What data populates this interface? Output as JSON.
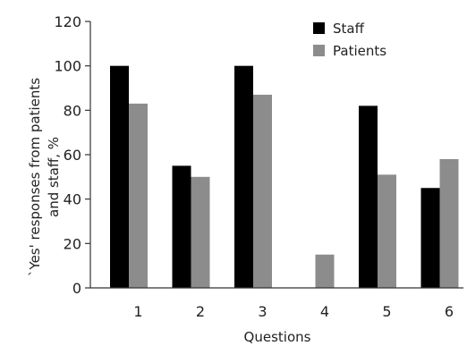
{
  "chart_data": {
    "type": "bar",
    "categories": [
      "1",
      "2",
      "3",
      "4",
      "5",
      "6"
    ],
    "series": [
      {
        "name": "Staff",
        "values": [
          100,
          55,
          100,
          0,
          82,
          45
        ],
        "color": "#000000"
      },
      {
        "name": "Patients",
        "values": [
          83,
          50,
          87,
          15,
          51,
          58
        ],
        "color": "#8c8c8c"
      }
    ],
    "ylim": [
      0,
      120
    ],
    "yticks": [
      0,
      20,
      40,
      60,
      80,
      100,
      120
    ],
    "xlabel": "Questions",
    "ylabel_lines": [
      "`Yes' responses from patients",
      "and staff, %"
    ],
    "legend_position": "top-right",
    "grid": false
  }
}
